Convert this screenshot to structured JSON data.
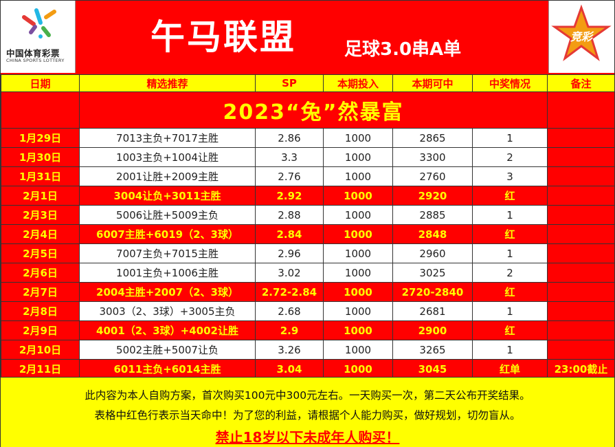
{
  "header": {
    "logo_cn": "中国体育彩票",
    "logo_en": "CHINA SPORTS LOTTERY",
    "title": "午马联盟",
    "subtitle": "足球3.0串A单",
    "jingcai_badge": "竞彩"
  },
  "columns": [
    "日期",
    "精选推荐",
    "SP",
    "本期投入",
    "本期可中",
    "中奖情况",
    "备注"
  ],
  "banner": "2023“兔”然暴富",
  "rows": [
    {
      "date": "1月29日",
      "pick": "7013主负+7017主胜",
      "sp": "2.86",
      "stake": "1000",
      "payout": "2865",
      "result": "1",
      "note": "",
      "win": false
    },
    {
      "date": "1月30日",
      "pick": "1003主负+1004让胜",
      "sp": "3.3",
      "stake": "1000",
      "payout": "3300",
      "result": "2",
      "note": "",
      "win": false
    },
    {
      "date": "1月31日",
      "pick": "2001让胜+2009主胜",
      "sp": "2.76",
      "stake": "1000",
      "payout": "2760",
      "result": "3",
      "note": "",
      "win": false
    },
    {
      "date": "2月1日",
      "pick": "3004让负+3011主胜",
      "sp": "2.92",
      "stake": "1000",
      "payout": "2920",
      "result": "红",
      "note": "",
      "win": true
    },
    {
      "date": "2月3日",
      "pick": "5006让胜+5009主负",
      "sp": "2.88",
      "stake": "1000",
      "payout": "2885",
      "result": "1",
      "note": "",
      "win": false
    },
    {
      "date": "2月4日",
      "pick": "6007主胜+6019（2、3球）",
      "sp": "2.84",
      "stake": "1000",
      "payout": "2848",
      "result": "红",
      "note": "",
      "win": true
    },
    {
      "date": "2月5日",
      "pick": "7007主负+7015主胜",
      "sp": "2.96",
      "stake": "1000",
      "payout": "2960",
      "result": "1",
      "note": "",
      "win": false
    },
    {
      "date": "2月6日",
      "pick": "1001主负+1006主胜",
      "sp": "3.02",
      "stake": "1000",
      "payout": "3025",
      "result": "2",
      "note": "",
      "win": false
    },
    {
      "date": "2月7日",
      "pick": "2004主胜+2007（2、3球）",
      "sp": "2.72-2.84",
      "stake": "1000",
      "payout": "2720-2840",
      "result": "红",
      "note": "",
      "win": true
    },
    {
      "date": "2月8日",
      "pick": "3003（2、3球）+3005主负",
      "sp": "2.68",
      "stake": "1000",
      "payout": "2681",
      "result": "1",
      "note": "",
      "win": false
    },
    {
      "date": "2月9日",
      "pick": "4001（2、3球）+4002让胜",
      "sp": "2.9",
      "stake": "1000",
      "payout": "2900",
      "result": "红",
      "note": "",
      "win": true
    },
    {
      "date": "2月10日",
      "pick": "5002主胜+5007让负",
      "sp": "3.26",
      "stake": "1000",
      "payout": "3265",
      "result": "1",
      "note": "",
      "win": false
    },
    {
      "date": "2月11日",
      "pick": "6011主负+6014主胜",
      "sp": "3.04",
      "stake": "1000",
      "payout": "3045",
      "result": "红单",
      "note": "23:00截止",
      "win": true
    }
  ],
  "footer": {
    "line1": "此内容为本人自购方案，首次购买100元中300元左右。一天购买一次，第二天公布开奖结果。",
    "line2": "表格中红色行表示当天命中！为了您的利益，请根据个人能力购买，做好规划，切勿盲从。",
    "line3": "禁止18岁以下未成年人购买！"
  },
  "colors": {
    "red": "#ff0000",
    "yellow": "#ffff00",
    "logo_cyan": "#23b7e5",
    "logo_orange": "#f39c12",
    "logo_purple": "#7b4fa0",
    "logo_green": "#49b04a",
    "logo_red": "#e53935"
  },
  "icons": {
    "logo": "china-sports-lottery-star-icon",
    "badge": "jingcai-star-badge-icon"
  }
}
